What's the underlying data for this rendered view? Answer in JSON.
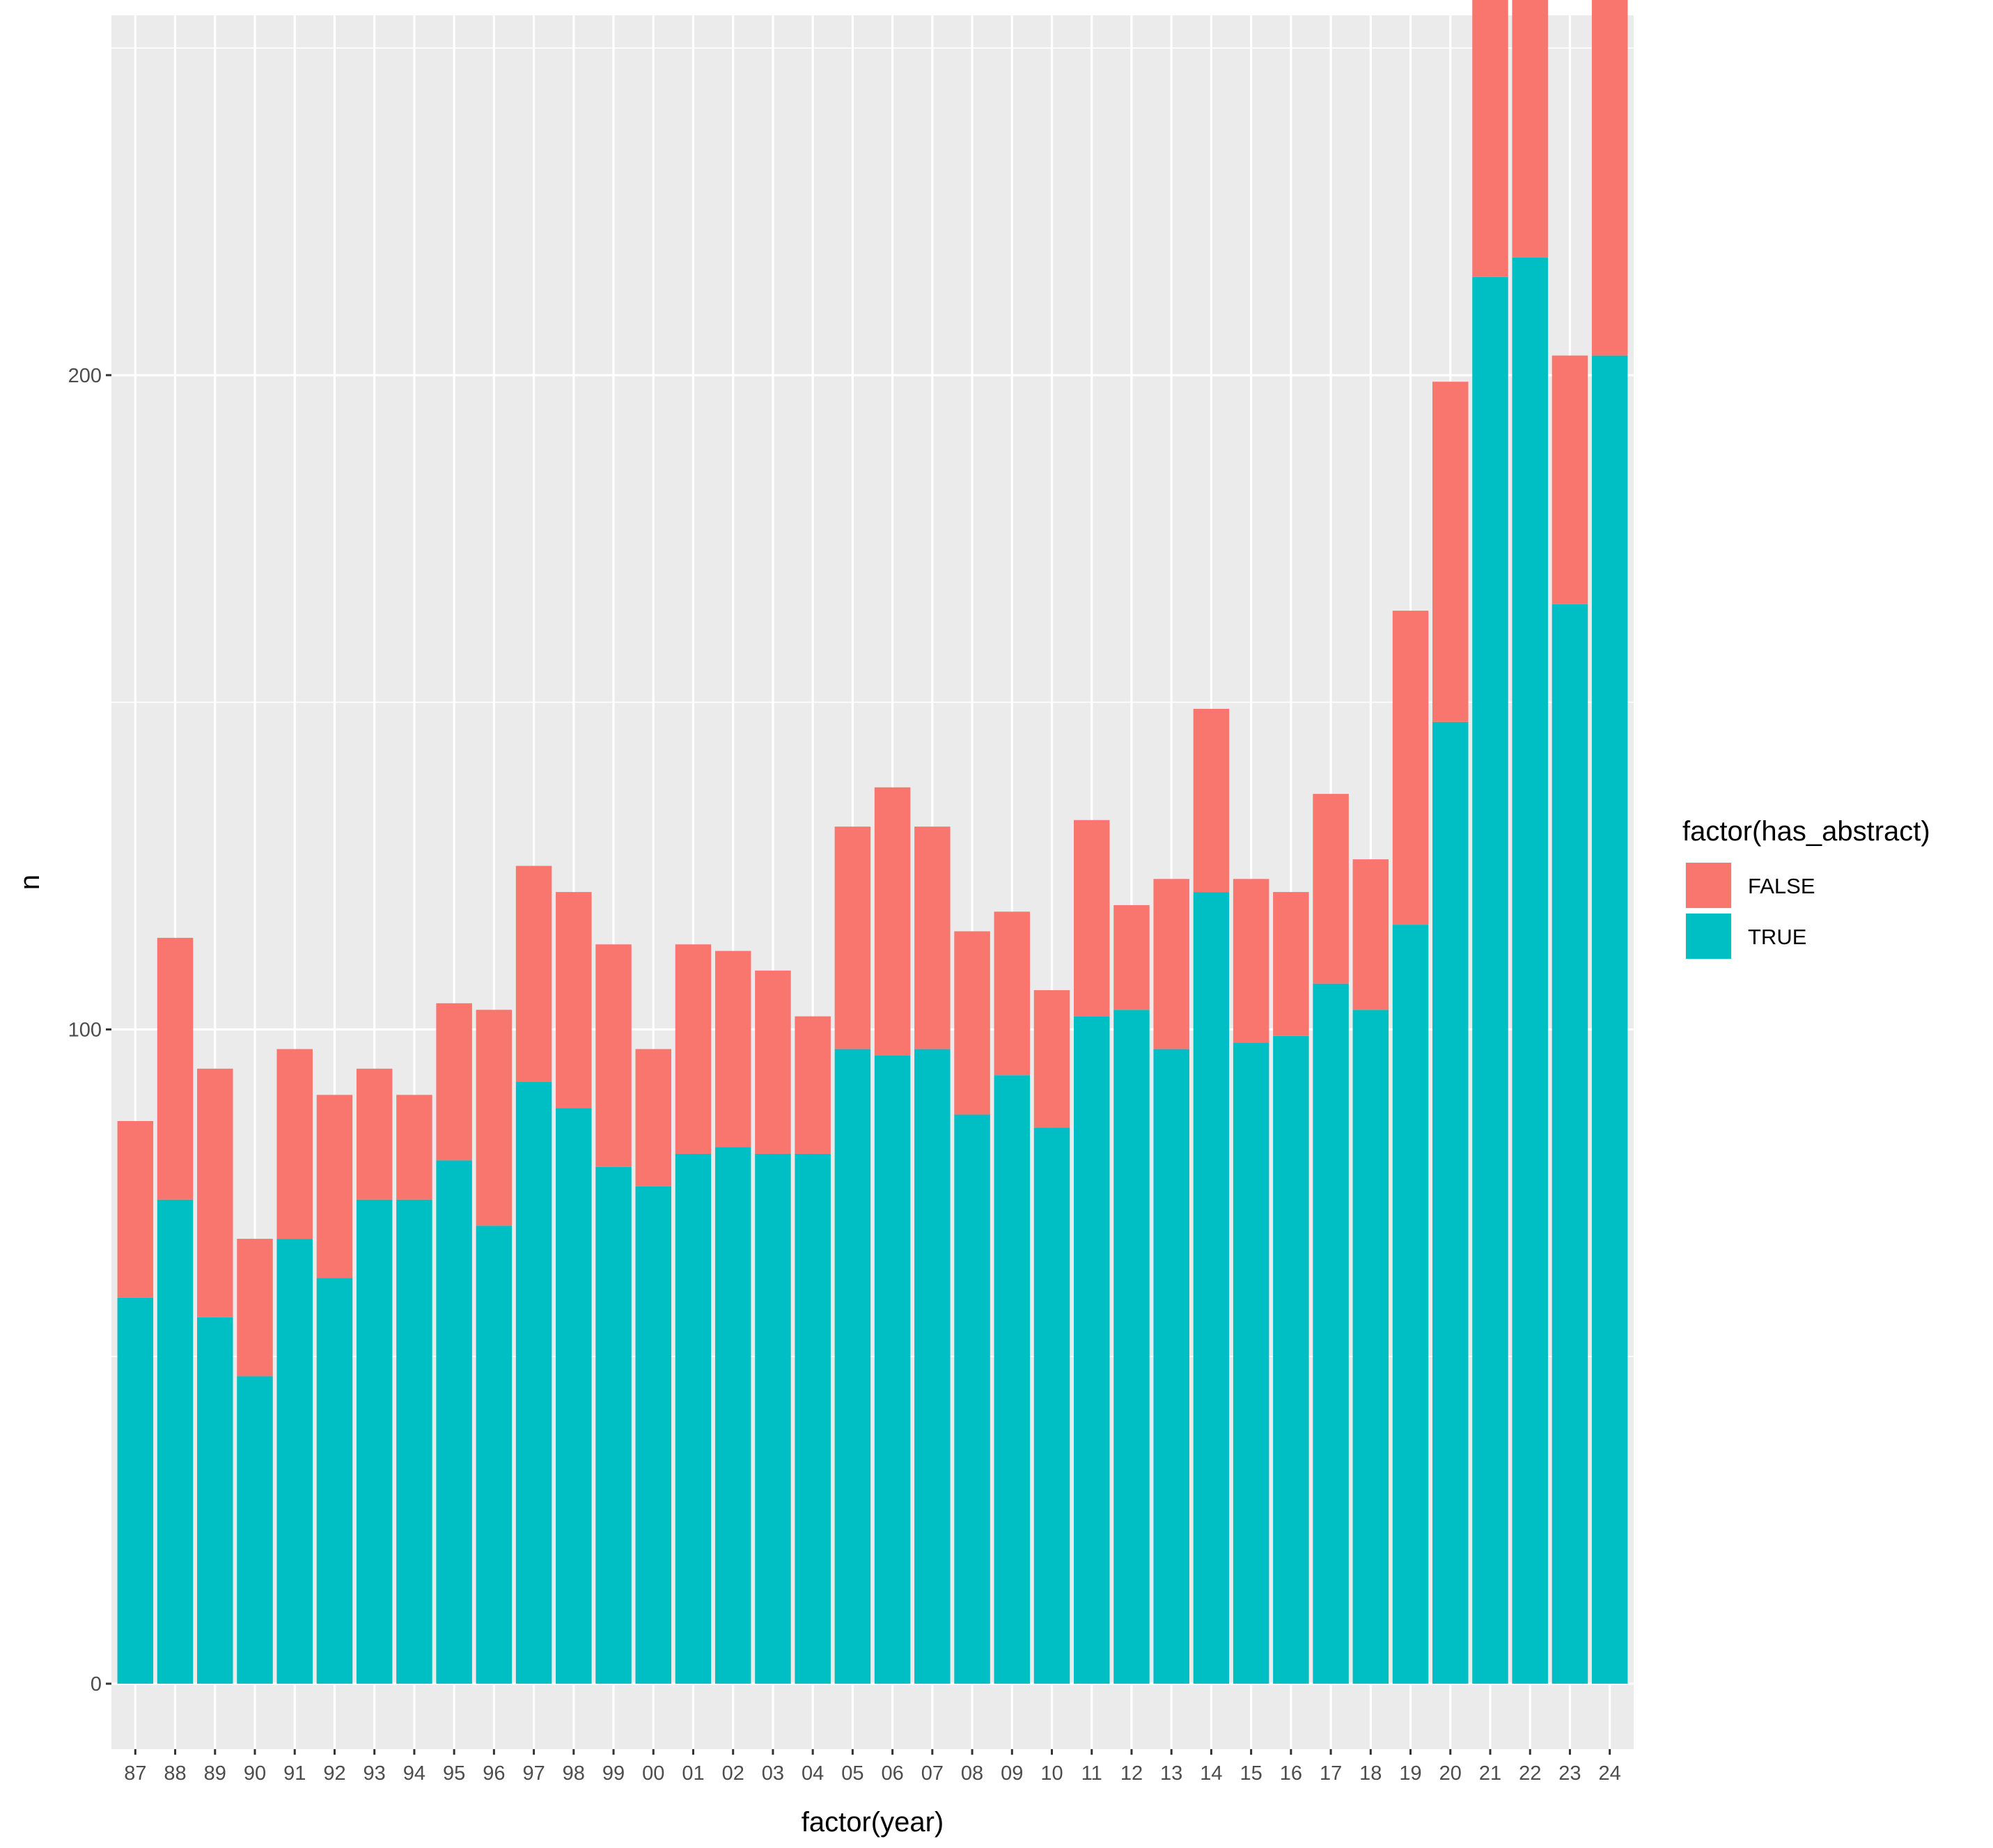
{
  "chart_data": {
    "type": "bar",
    "stacked": true,
    "xlabel": "factor(year)",
    "ylabel": "n",
    "ylim": [
      -10,
      255
    ],
    "yticks": [
      0,
      100,
      200
    ],
    "grid": true,
    "legend": {
      "title": "factor(has_abstract)",
      "position": "right",
      "entries": [
        {
          "label": "FALSE",
          "color": "#F8766D"
        },
        {
          "label": "TRUE",
          "color": "#00BFC4"
        }
      ]
    },
    "categories": [
      "87",
      "88",
      "89",
      "90",
      "91",
      "92",
      "93",
      "94",
      "95",
      "96",
      "97",
      "98",
      "99",
      "00",
      "01",
      "02",
      "03",
      "04",
      "05",
      "06",
      "07",
      "08",
      "09",
      "10",
      "11",
      "12",
      "13",
      "14",
      "15",
      "16",
      "17",
      "18",
      "19",
      "20",
      "21",
      "22",
      "23",
      "24"
    ],
    "series": [
      {
        "name": "TRUE",
        "color": "#00BFC4",
        "values": [
          59,
          74,
          56,
          47,
          68,
          62,
          74,
          74,
          80,
          70,
          92,
          88,
          79,
          76,
          81,
          82,
          81,
          81,
          97,
          96,
          97,
          87,
          93,
          85,
          102,
          103,
          97,
          121,
          98,
          99,
          107,
          103,
          116,
          147,
          215,
          218,
          165,
          203
        ]
      },
      {
        "name": "FALSE",
        "color": "#F8766D",
        "values": [
          27,
          40,
          38,
          21,
          29,
          28,
          20,
          16,
          24,
          33,
          33,
          33,
          34,
          21,
          32,
          30,
          28,
          21,
          34,
          41,
          34,
          28,
          25,
          21,
          30,
          16,
          26,
          28,
          25,
          22,
          29,
          23,
          48,
          52,
          66,
          52,
          38,
          65
        ]
      }
    ]
  }
}
